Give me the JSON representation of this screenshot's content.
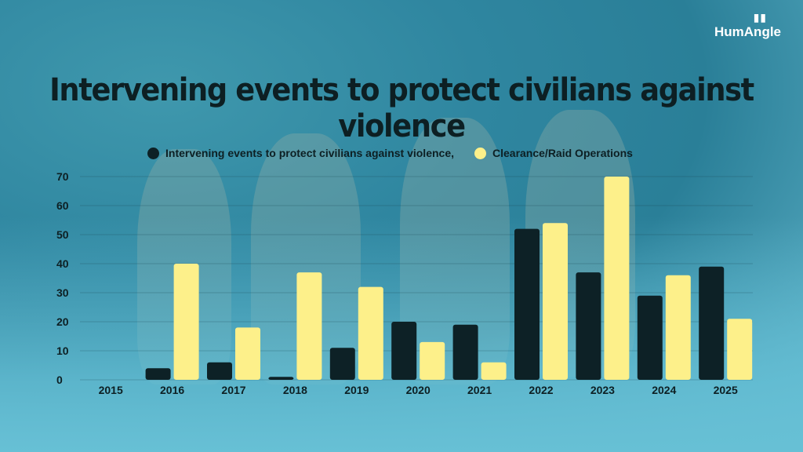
{
  "brand": {
    "name": "HumAngle",
    "signal_icon": "signal-bars-icon"
  },
  "chart_data": {
    "type": "bar",
    "title": "Intervening events to protect civilians against violence",
    "xlabel": "",
    "ylabel": "",
    "categories": [
      "2015",
      "2016",
      "2017",
      "2018",
      "2019",
      "2020",
      "2021",
      "2022",
      "2023",
      "2024",
      "2025"
    ],
    "series": [
      {
        "name": "Intervening events to protect civilians against violence,",
        "color": "#0d2126",
        "values": [
          0,
          4,
          6,
          1,
          11,
          20,
          19,
          52,
          37,
          29,
          39
        ]
      },
      {
        "name": "Clearance/Raid Operations",
        "color": "#fdf08a",
        "values": [
          0,
          40,
          18,
          37,
          32,
          13,
          6,
          54,
          70,
          36,
          21
        ]
      }
    ],
    "ylim": [
      0,
      70
    ],
    "yticks": [
      0,
      10,
      20,
      30,
      40,
      50,
      60,
      70
    ],
    "grid": true,
    "legend_position": "top"
  }
}
